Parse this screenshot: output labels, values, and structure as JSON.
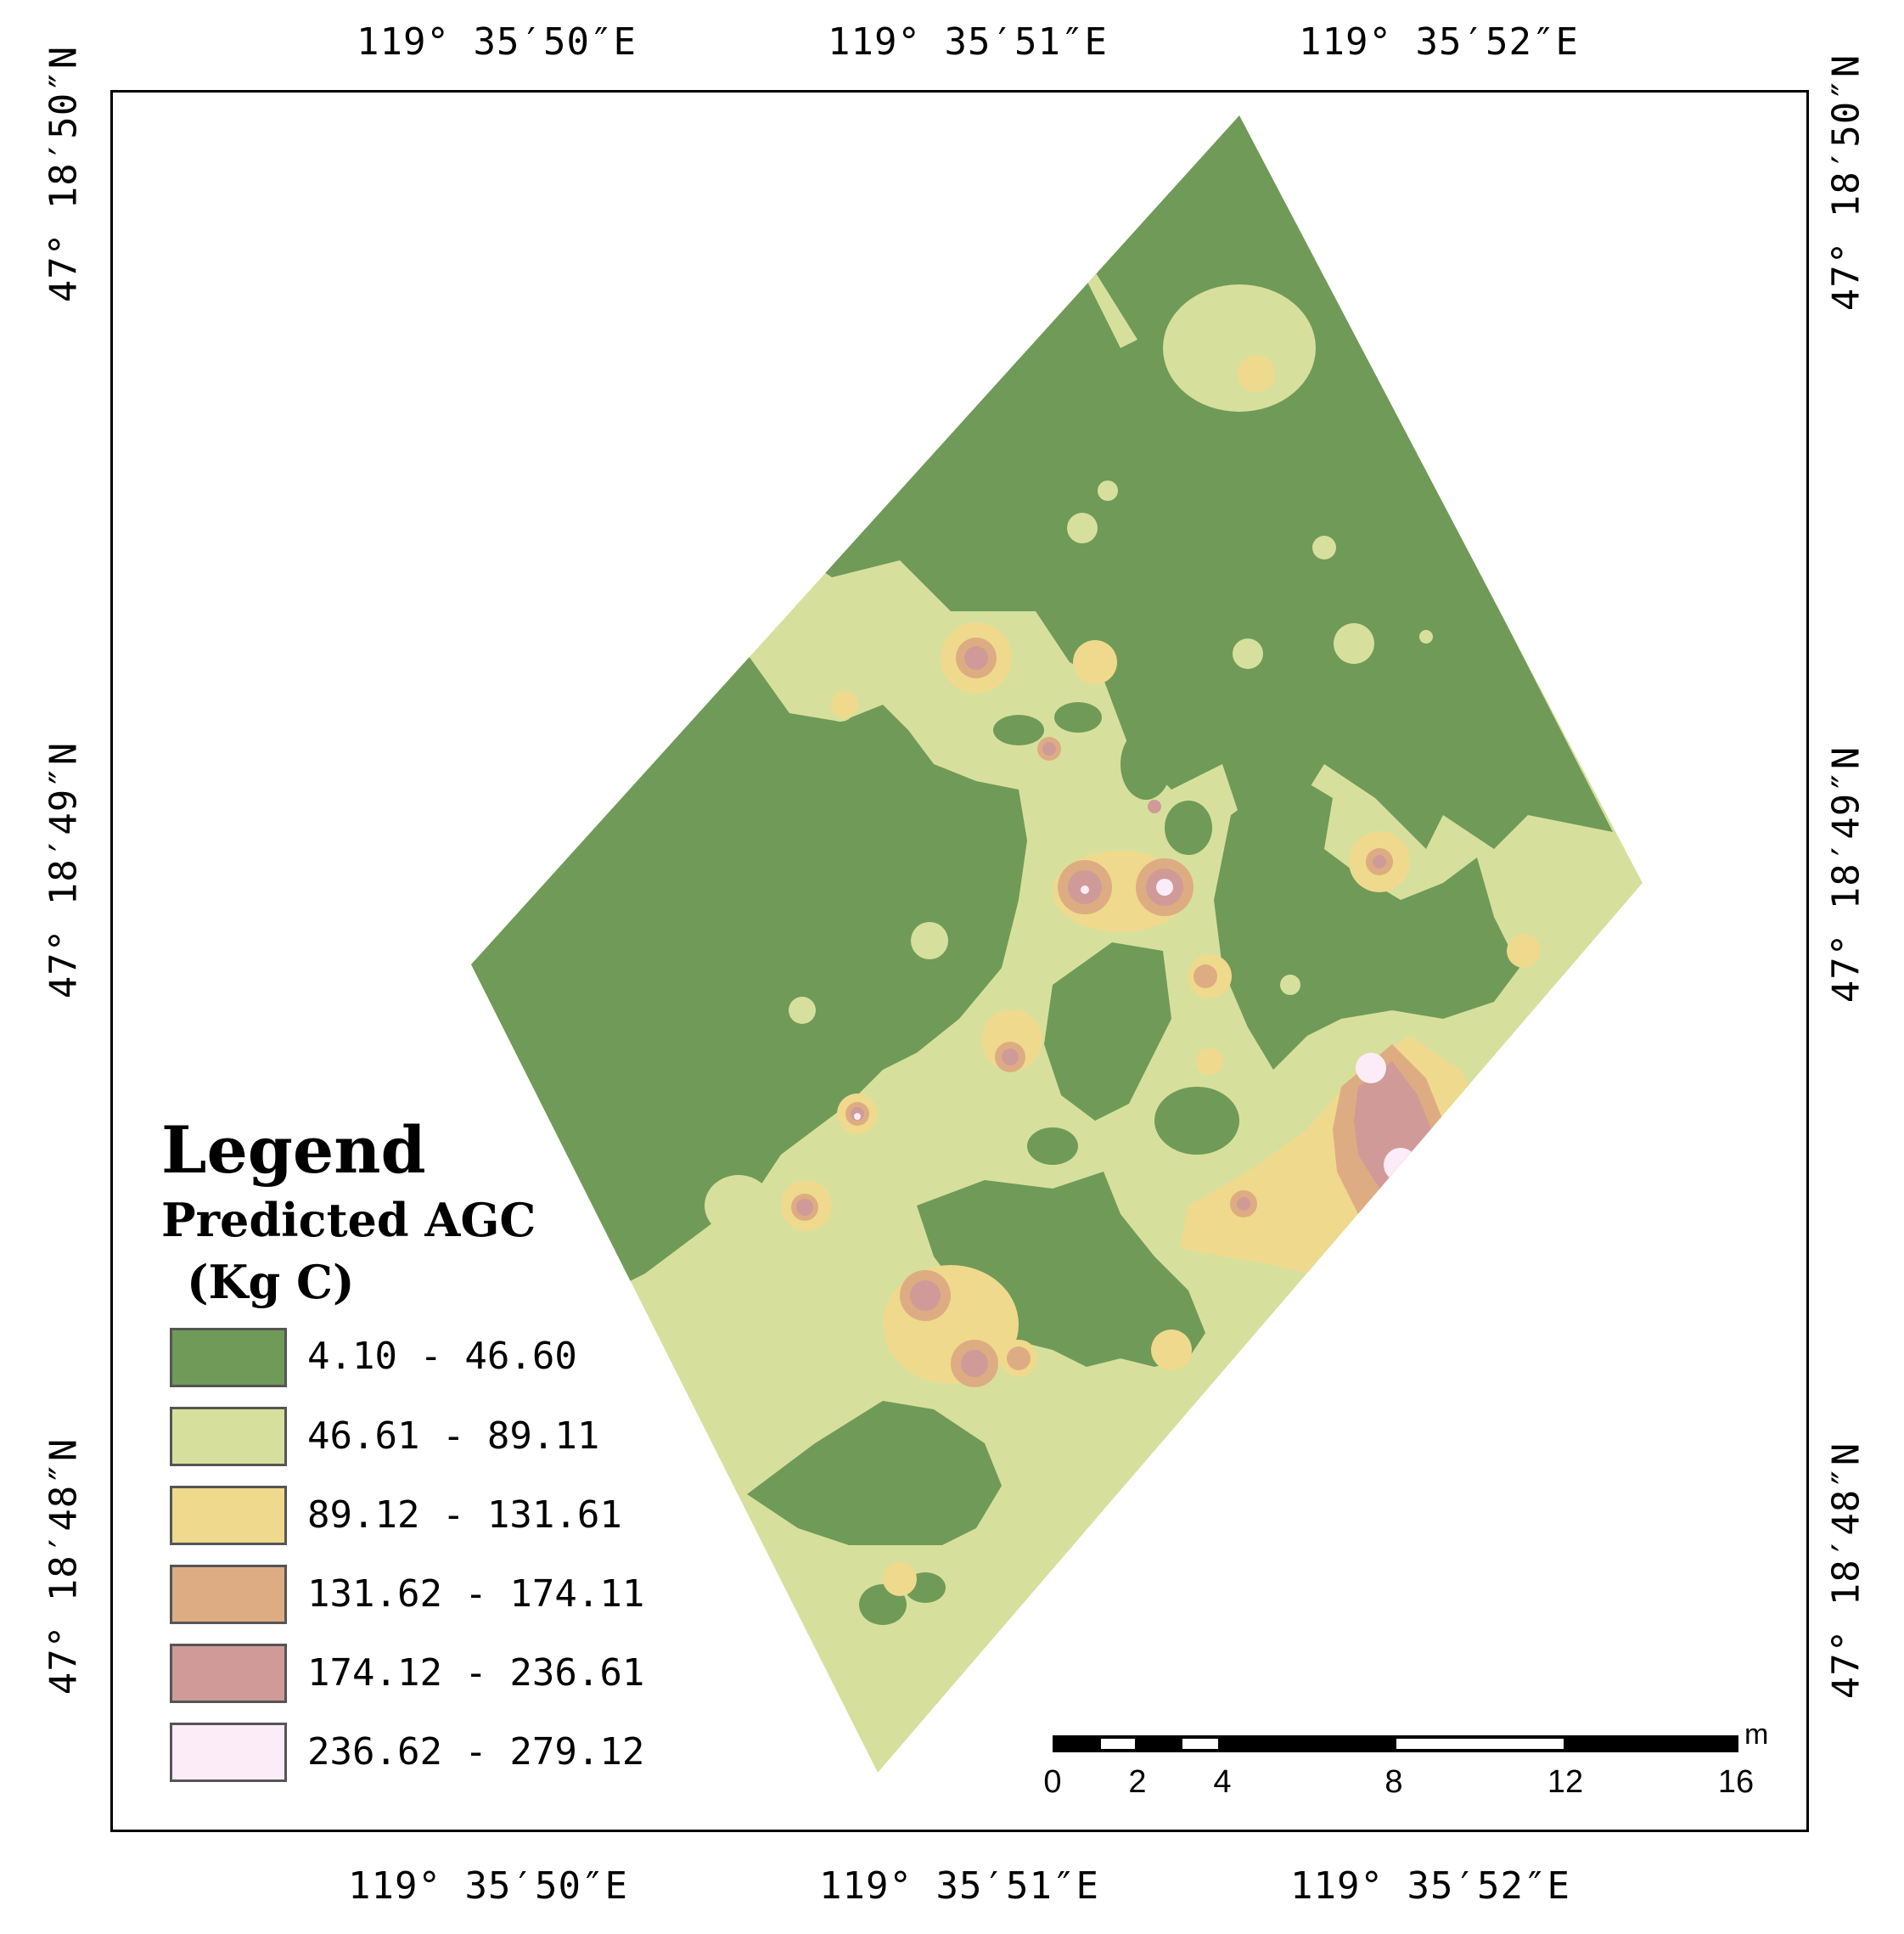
{
  "map": {
    "longitude_labels": [
      "119° 35′50″E",
      "119° 35′51″E",
      "119° 35′52″E"
    ],
    "latitude_labels": [
      "47° 18′50″N",
      "47° 18′49″N",
      "47° 18′48″N"
    ]
  },
  "legend": {
    "title": "Legend",
    "subtitle": "Predicted  AGC",
    "unit": "(Kg C)",
    "classes": [
      {
        "label": "4.10 - 46.60",
        "color": "#709a58"
      },
      {
        "label": "46.61 - 89.11",
        "color": "#d6e09c"
      },
      {
        "label": "89.12 - 131.61",
        "color": "#efd98d"
      },
      {
        "label": "131.62 - 174.11",
        "color": "#deac82"
      },
      {
        "label": "174.12 - 236.61",
        "color": "#d09a98"
      },
      {
        "label": "236.62 - 279.12",
        "color": "#fbecf8"
      }
    ]
  },
  "scale_bar": {
    "ticks": [
      "0",
      "2",
      "4",
      "8",
      "12",
      "16"
    ],
    "unit": "m"
  }
}
